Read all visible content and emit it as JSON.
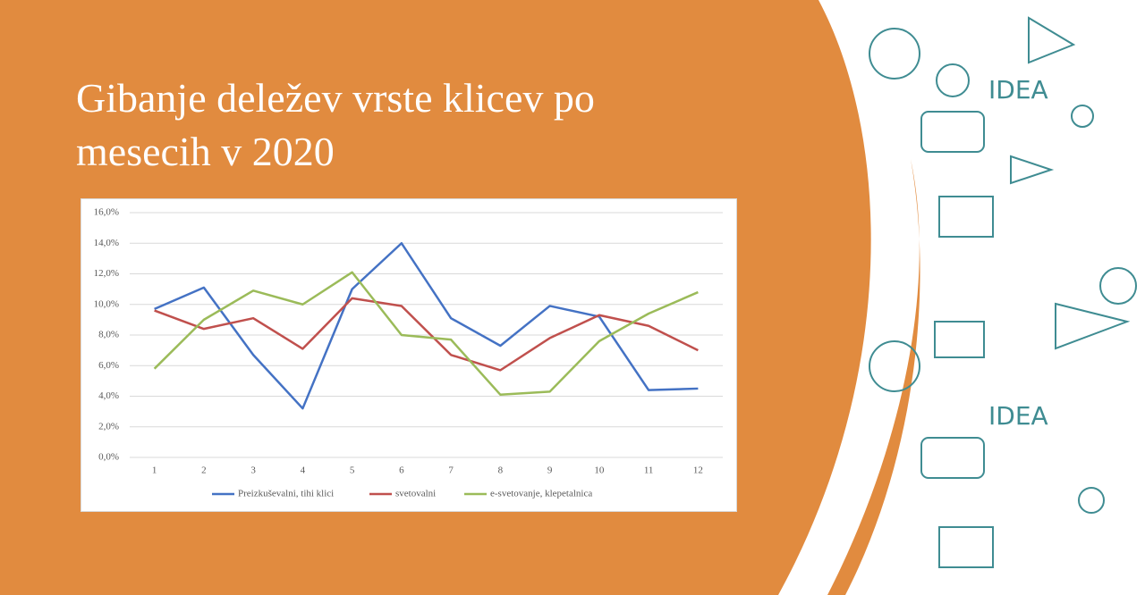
{
  "chart_data": {
    "type": "line",
    "title": "Gibanje deležev vrste klicev po mesecih v 2020",
    "categories": [
      "1",
      "2",
      "3",
      "4",
      "5",
      "6",
      "7",
      "8",
      "9",
      "10",
      "11",
      "12"
    ],
    "series": [
      {
        "name": "Preizkuševalni, tihi klici",
        "color": "#4472c4",
        "values": [
          9.7,
          11.1,
          6.7,
          3.2,
          11.0,
          14.0,
          9.1,
          7.3,
          9.9,
          9.2,
          4.4,
          4.5
        ]
      },
      {
        "name": "svetovalni",
        "color": "#c0504d",
        "values": [
          9.6,
          8.4,
          9.1,
          7.1,
          10.4,
          9.9,
          6.7,
          5.7,
          7.8,
          9.3,
          8.6,
          7.0
        ]
      },
      {
        "name": "e-svetovanje, klepetalnica",
        "color": "#9bbb59",
        "values": [
          5.8,
          9.0,
          10.9,
          10.0,
          12.1,
          8.0,
          7.7,
          4.1,
          4.3,
          7.6,
          9.4,
          10.8
        ]
      }
    ],
    "ylim": [
      0,
      16
    ],
    "yticks": [
      {
        "value": 0,
        "label": "0,0%"
      },
      {
        "value": 2,
        "label": "2,0%"
      },
      {
        "value": 4,
        "label": "4,0%"
      },
      {
        "value": 6,
        "label": "6,0%"
      },
      {
        "value": 8,
        "label": "8,0%"
      },
      {
        "value": 10,
        "label": "10,0%"
      },
      {
        "value": 12,
        "label": "12,0%"
      },
      {
        "value": 14,
        "label": "14,0%"
      },
      {
        "value": 16,
        "label": "16,0%"
      }
    ],
    "grid": true,
    "legend": "bottom"
  }
}
